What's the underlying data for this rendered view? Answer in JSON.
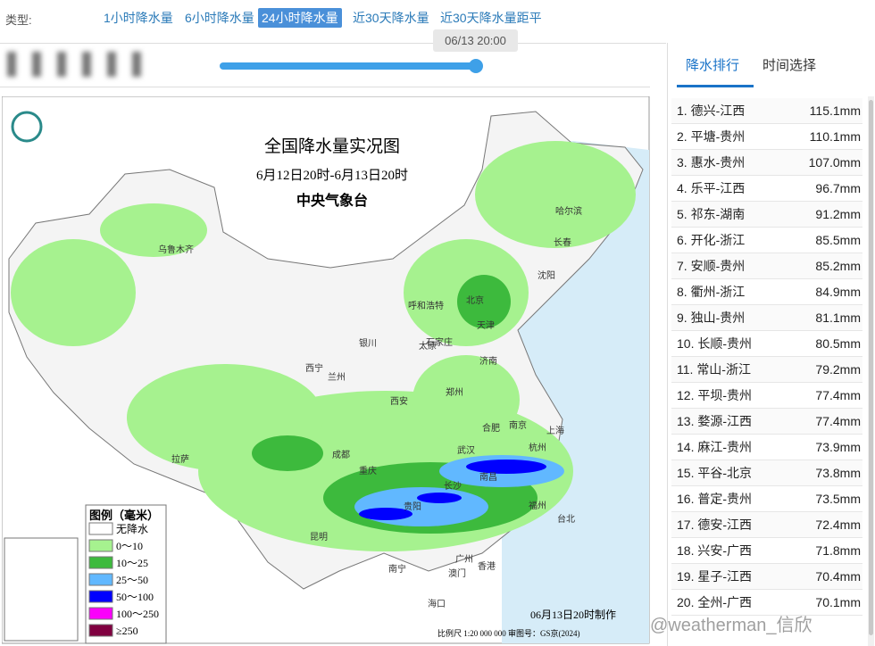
{
  "type_label": "类型:",
  "tabs": [
    "1小时降水量",
    "6小时降水量",
    "24小时降水量",
    "近30天降水量",
    "近30天降水量距平"
  ],
  "active_tab": 2,
  "slider_time": "06/13 20:00",
  "map": {
    "title": "全国降水量实况图",
    "subtitle": "6月12日20时-6月13日20时",
    "agency": "中央气象台",
    "legend_title": "图例（毫米）",
    "legend": [
      {
        "label": "无降水",
        "color": "#ffffff"
      },
      {
        "label": "0～10",
        "color": "#a6f28f"
      },
      {
        "label": "10～25",
        "color": "#3dba3d"
      },
      {
        "label": "25～50",
        "color": "#61b8ff"
      },
      {
        "label": "50～100",
        "color": "#0000fe"
      },
      {
        "label": "100～250",
        "color": "#fa00fa"
      },
      {
        "label": "≥250",
        "color": "#800040"
      }
    ],
    "cities": [
      "乌鲁木齐",
      "呼和浩特",
      "北京",
      "天津",
      "哈尔滨",
      "长春",
      "沈阳",
      "银川",
      "太原",
      "石家庄",
      "济南",
      "西宁",
      "兰州",
      "西安",
      "郑州",
      "合肥",
      "南京",
      "上海",
      "杭州",
      "武汉",
      "成都",
      "重庆",
      "拉萨",
      "南昌",
      "长沙",
      "福州",
      "台北",
      "贵阳",
      "昆明",
      "南宁",
      "广州",
      "香港",
      "澳门",
      "海口"
    ],
    "made": "06月13日20时制作",
    "scale": "比例尺 1:20 000 000  审图号：GS京(2024)"
  },
  "watermark": "@weatherman_信欣",
  "panel_tabs": [
    "降水排行",
    "时间选择"
  ],
  "ranking": [
    [
      "1. 德兴-江西",
      "115.1mm"
    ],
    [
      "2. 平塘-贵州",
      "110.1mm"
    ],
    [
      "3. 惠水-贵州",
      "107.0mm"
    ],
    [
      "4. 乐平-江西",
      "96.7mm"
    ],
    [
      "5. 祁东-湖南",
      "91.2mm"
    ],
    [
      "6. 开化-浙江",
      "85.5mm"
    ],
    [
      "7. 安顺-贵州",
      "85.2mm"
    ],
    [
      "8. 衢州-浙江",
      "84.9mm"
    ],
    [
      "9. 独山-贵州",
      "81.1mm"
    ],
    [
      "10. 长顺-贵州",
      "80.5mm"
    ],
    [
      "11. 常山-浙江",
      "79.2mm"
    ],
    [
      "12. 平坝-贵州",
      "77.4mm"
    ],
    [
      "13. 婺源-江西",
      "77.4mm"
    ],
    [
      "14. 麻江-贵州",
      "73.9mm"
    ],
    [
      "15. 平谷-北京",
      "73.8mm"
    ],
    [
      "16. 普定-贵州",
      "73.5mm"
    ],
    [
      "17. 德安-江西",
      "72.4mm"
    ],
    [
      "18. 兴安-广西",
      "71.8mm"
    ],
    [
      "19. 星子-江西",
      "70.4mm"
    ],
    [
      "20. 全州-广西",
      "70.1mm"
    ]
  ]
}
